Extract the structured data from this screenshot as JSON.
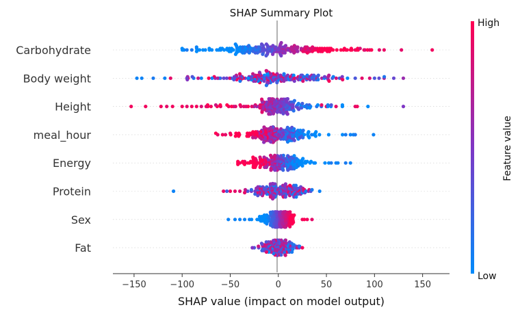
{
  "chart_data": {
    "type": "scatter",
    "subtype": "shap-beeswarm",
    "title": "SHAP Summary Plot",
    "xlabel": "SHAP value (impact on model output)",
    "xlim": [
      -172,
      178
    ],
    "xticks": [
      -150,
      -100,
      -50,
      0,
      50,
      100,
      150
    ],
    "xtick_labels": [
      "−150",
      "−100",
      "−50",
      "0",
      "50",
      "100",
      "150"
    ],
    "features": [
      "Carbohydrate",
      "Body weight",
      "Height",
      "meal_hour",
      "Energy",
      "Protein",
      "Sex",
      "Fat"
    ],
    "colorbar": {
      "label": "Feature value",
      "high_label": "High",
      "low_label": "Low",
      "low_color": "#008bfb",
      "mid_color": "#7f36c5",
      "high_color": "#ff0052"
    },
    "series": [
      {
        "feature": "Carbohydrate",
        "n": 220,
        "range": [
          -100,
          162
        ],
        "core_sd": 35,
        "tail_sd": 45,
        "trend": "positive",
        "color_noise": 0.12,
        "outliers": [
          [
            -98,
            0.05
          ],
          [
            -95,
            0.1
          ],
          [
            160,
            0.95
          ],
          [
            128,
            0.9
          ],
          [
            110,
            0.92
          ],
          [
            105,
            0.88
          ],
          [
            95,
            0.9
          ],
          [
            90,
            0.85
          ],
          [
            85,
            0.85
          ],
          [
            80,
            0.9
          ],
          [
            -90,
            0.1
          ],
          [
            -85,
            0.05
          ]
        ]
      },
      {
        "feature": "Body weight",
        "n": 200,
        "range": [
          -150,
          132
        ],
        "core_sd": 25,
        "tail_sd": 45,
        "trend": "mixed",
        "color_noise": 0.5,
        "outliers": [
          [
            -147,
            0.05
          ],
          [
            -142,
            0.05
          ],
          [
            -130,
            0.1
          ],
          [
            -118,
            0.05
          ],
          [
            -112,
            0.9
          ],
          [
            -95,
            0.45
          ],
          [
            -88,
            0.1
          ],
          [
            -80,
            0.05
          ],
          [
            130,
            0.6
          ],
          [
            120,
            0.4
          ],
          [
            110,
            0.7
          ],
          [
            100,
            0.3
          ],
          [
            95,
            0.85
          ],
          [
            87,
            0.9
          ],
          [
            80,
            0.3
          ]
        ]
      },
      {
        "feature": "Height",
        "n": 200,
        "range": [
          -155,
          130
        ],
        "core_sd": 12,
        "tail_sd": 35,
        "trend": "negative",
        "color_noise": 0.2,
        "outliers": [
          [
            -153,
            0.95
          ],
          [
            -138,
            0.95
          ],
          [
            -122,
            0.95
          ],
          [
            -116,
            0.9
          ],
          [
            -110,
            0.95
          ],
          [
            -100,
            0.95
          ],
          [
            -95,
            0.9
          ],
          [
            -90,
            0.95
          ],
          [
            -85,
            0.95
          ],
          [
            -80,
            0.85
          ],
          [
            -75,
            0.9
          ],
          [
            -70,
            0.95
          ],
          [
            -65,
            0.8
          ],
          [
            -60,
            0.9
          ],
          [
            45,
            0.9
          ],
          [
            50,
            0.95
          ],
          [
            55,
            0.3
          ],
          [
            60,
            0.9
          ],
          [
            80,
            0.9
          ],
          [
            82,
            0.95
          ],
          [
            130,
            0.5
          ]
        ]
      },
      {
        "feature": "meal_hour",
        "n": 220,
        "range": [
          -65,
          100
        ],
        "core_sd": 18,
        "tail_sd": 28,
        "trend": "negative",
        "color_noise": 0.3,
        "outliers": [
          [
            -63,
            0.9
          ],
          [
            -58,
            0.95
          ],
          [
            -55,
            0.9
          ],
          [
            -50,
            0.95
          ],
          [
            70,
            0.1
          ],
          [
            75,
            0.05
          ],
          [
            78,
            0.05
          ],
          [
            80,
            0.1
          ],
          [
            99,
            0.05
          ]
        ]
      },
      {
        "feature": "Energy",
        "n": 200,
        "range": [
          -42,
          75
        ],
        "core_sd": 15,
        "tail_sd": 22,
        "trend": "negative",
        "color_noise": 0.25,
        "outliers": [
          [
            -40,
            0.95
          ],
          [
            -35,
            0.9
          ],
          [
            55,
            0.1
          ],
          [
            60,
            0.05
          ],
          [
            62,
            0.05
          ],
          [
            70,
            0.1
          ],
          [
            75,
            0.05
          ]
        ]
      },
      {
        "feature": "Protein",
        "n": 170,
        "range": [
          -110,
          45
        ],
        "core_sd": 14,
        "tail_sd": 20,
        "trend": "mixed",
        "color_noise": 0.4,
        "outliers": [
          [
            -109,
            0.05
          ],
          [
            -57,
            0.9
          ],
          [
            -50,
            0.95
          ],
          [
            -45,
            0.9
          ],
          [
            -40,
            0.85
          ],
          [
            -35,
            0.9
          ],
          [
            35,
            0.1
          ],
          [
            43,
            0.05
          ]
        ]
      },
      {
        "feature": "Sex",
        "n": 170,
        "range": [
          -52,
          35
        ],
        "core_sd": 8,
        "tail_sd": 12,
        "trend": "positive",
        "color_noise": 0.05,
        "outliers": [
          [
            -52,
            0.05
          ],
          [
            -45,
            0.05
          ],
          [
            -40,
            0.05
          ],
          [
            -35,
            0.05
          ],
          [
            -30,
            0.05
          ],
          [
            25,
            0.95
          ],
          [
            30,
            0.95
          ],
          [
            35,
            0.9
          ]
        ]
      },
      {
        "feature": "Fat",
        "n": 140,
        "range": [
          -28,
          25
        ],
        "core_sd": 8,
        "tail_sd": 10,
        "trend": "mixed",
        "color_noise": 0.45,
        "outliers": [
          [
            -27,
            0.5
          ],
          [
            -25,
            0.3
          ],
          [
            20,
            0.9
          ],
          [
            25,
            0.95
          ],
          [
            22,
            0.1
          ]
        ]
      }
    ]
  }
}
